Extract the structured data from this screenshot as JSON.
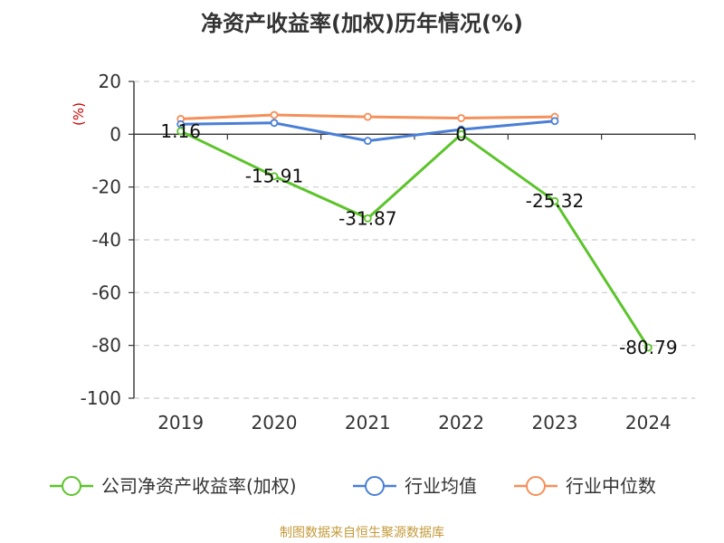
{
  "chart_data": {
    "type": "line",
    "title": "净资产收益率(加权)历年情况(%)",
    "ylabel": "(%)",
    "categories": [
      "2019",
      "2020",
      "2021",
      "2022",
      "2023",
      "2024"
    ],
    "ylim": [
      -100,
      20
    ],
    "yticks": [
      20,
      0,
      -20,
      -40,
      -60,
      -80,
      -100
    ],
    "grid": true,
    "legend_position": "bottom",
    "series": [
      {
        "name": "公司净资产收益率(加权)",
        "color": "#5cc42b",
        "values": [
          1.16,
          -15.91,
          -31.87,
          0,
          -25.32,
          -80.79
        ],
        "labels": [
          "1.16",
          "-15.91",
          "-31.87",
          "0",
          "-25.32",
          "-80.79"
        ]
      },
      {
        "name": "行业均值",
        "color": "#4a7fd6",
        "values": [
          3.8,
          4.3,
          -2.5,
          1.8,
          5.0,
          null
        ]
      },
      {
        "name": "行业中位数",
        "color": "#f5905a",
        "values": [
          5.8,
          7.3,
          6.6,
          6.1,
          6.6,
          null
        ]
      }
    ]
  },
  "source": "制图数据来自恒生聚源数据库"
}
